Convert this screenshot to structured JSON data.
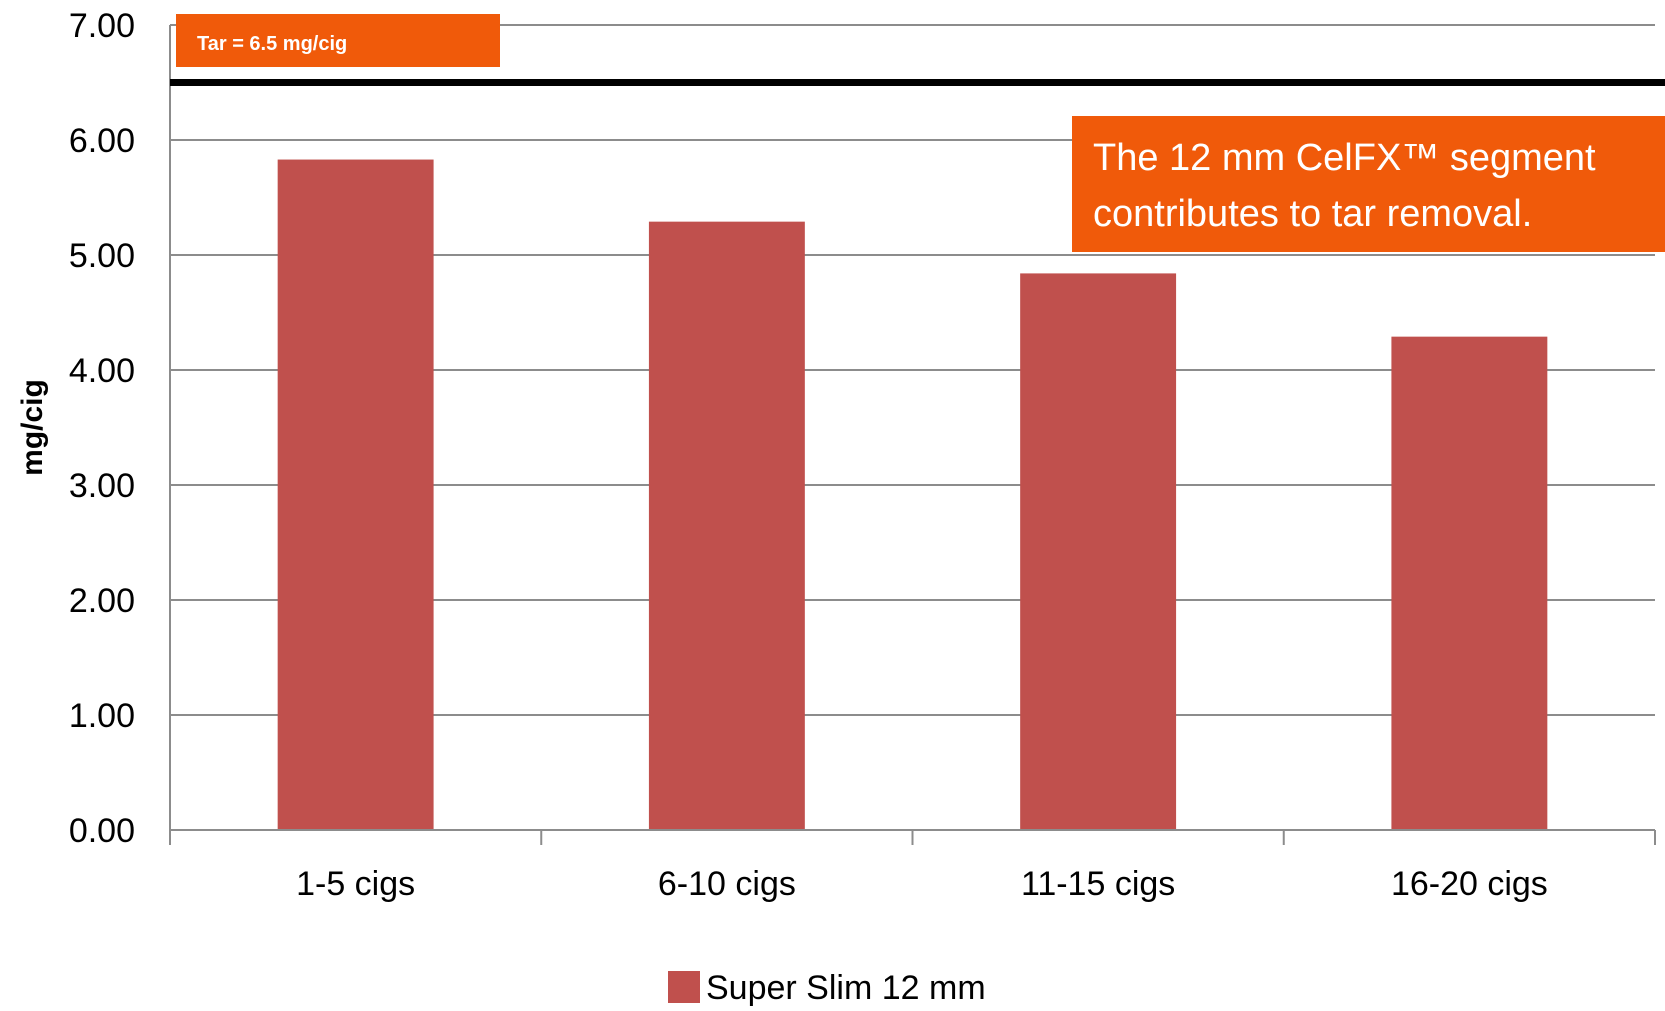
{
  "chart_data": {
    "type": "bar",
    "title": "",
    "xlabel": "",
    "ylabel": "mg/cig",
    "ylim": [
      0,
      7
    ],
    "yticks": [
      "0.00",
      "1.00",
      "2.00",
      "3.00",
      "4.00",
      "5.00",
      "6.00",
      "7.00"
    ],
    "grid": true,
    "categories": [
      "1-5 cigs",
      "6-10 cigs",
      "11-15 cigs",
      "16-20 cigs"
    ],
    "series": [
      {
        "name": "Super Slim 12 mm",
        "color": "#c0504d",
        "values": [
          5.83,
          5.29,
          4.84,
          4.29
        ]
      }
    ],
    "reference_line": {
      "value": 6.5,
      "label": "Tar = 6.5 mg/cig",
      "color": "#000000"
    },
    "annotation": {
      "lines": [
        "The 12 mm CelFX™ segment",
        "contributes to tar removal."
      ],
      "background": "#f05a0a"
    },
    "legend_position": "bottom-center"
  }
}
